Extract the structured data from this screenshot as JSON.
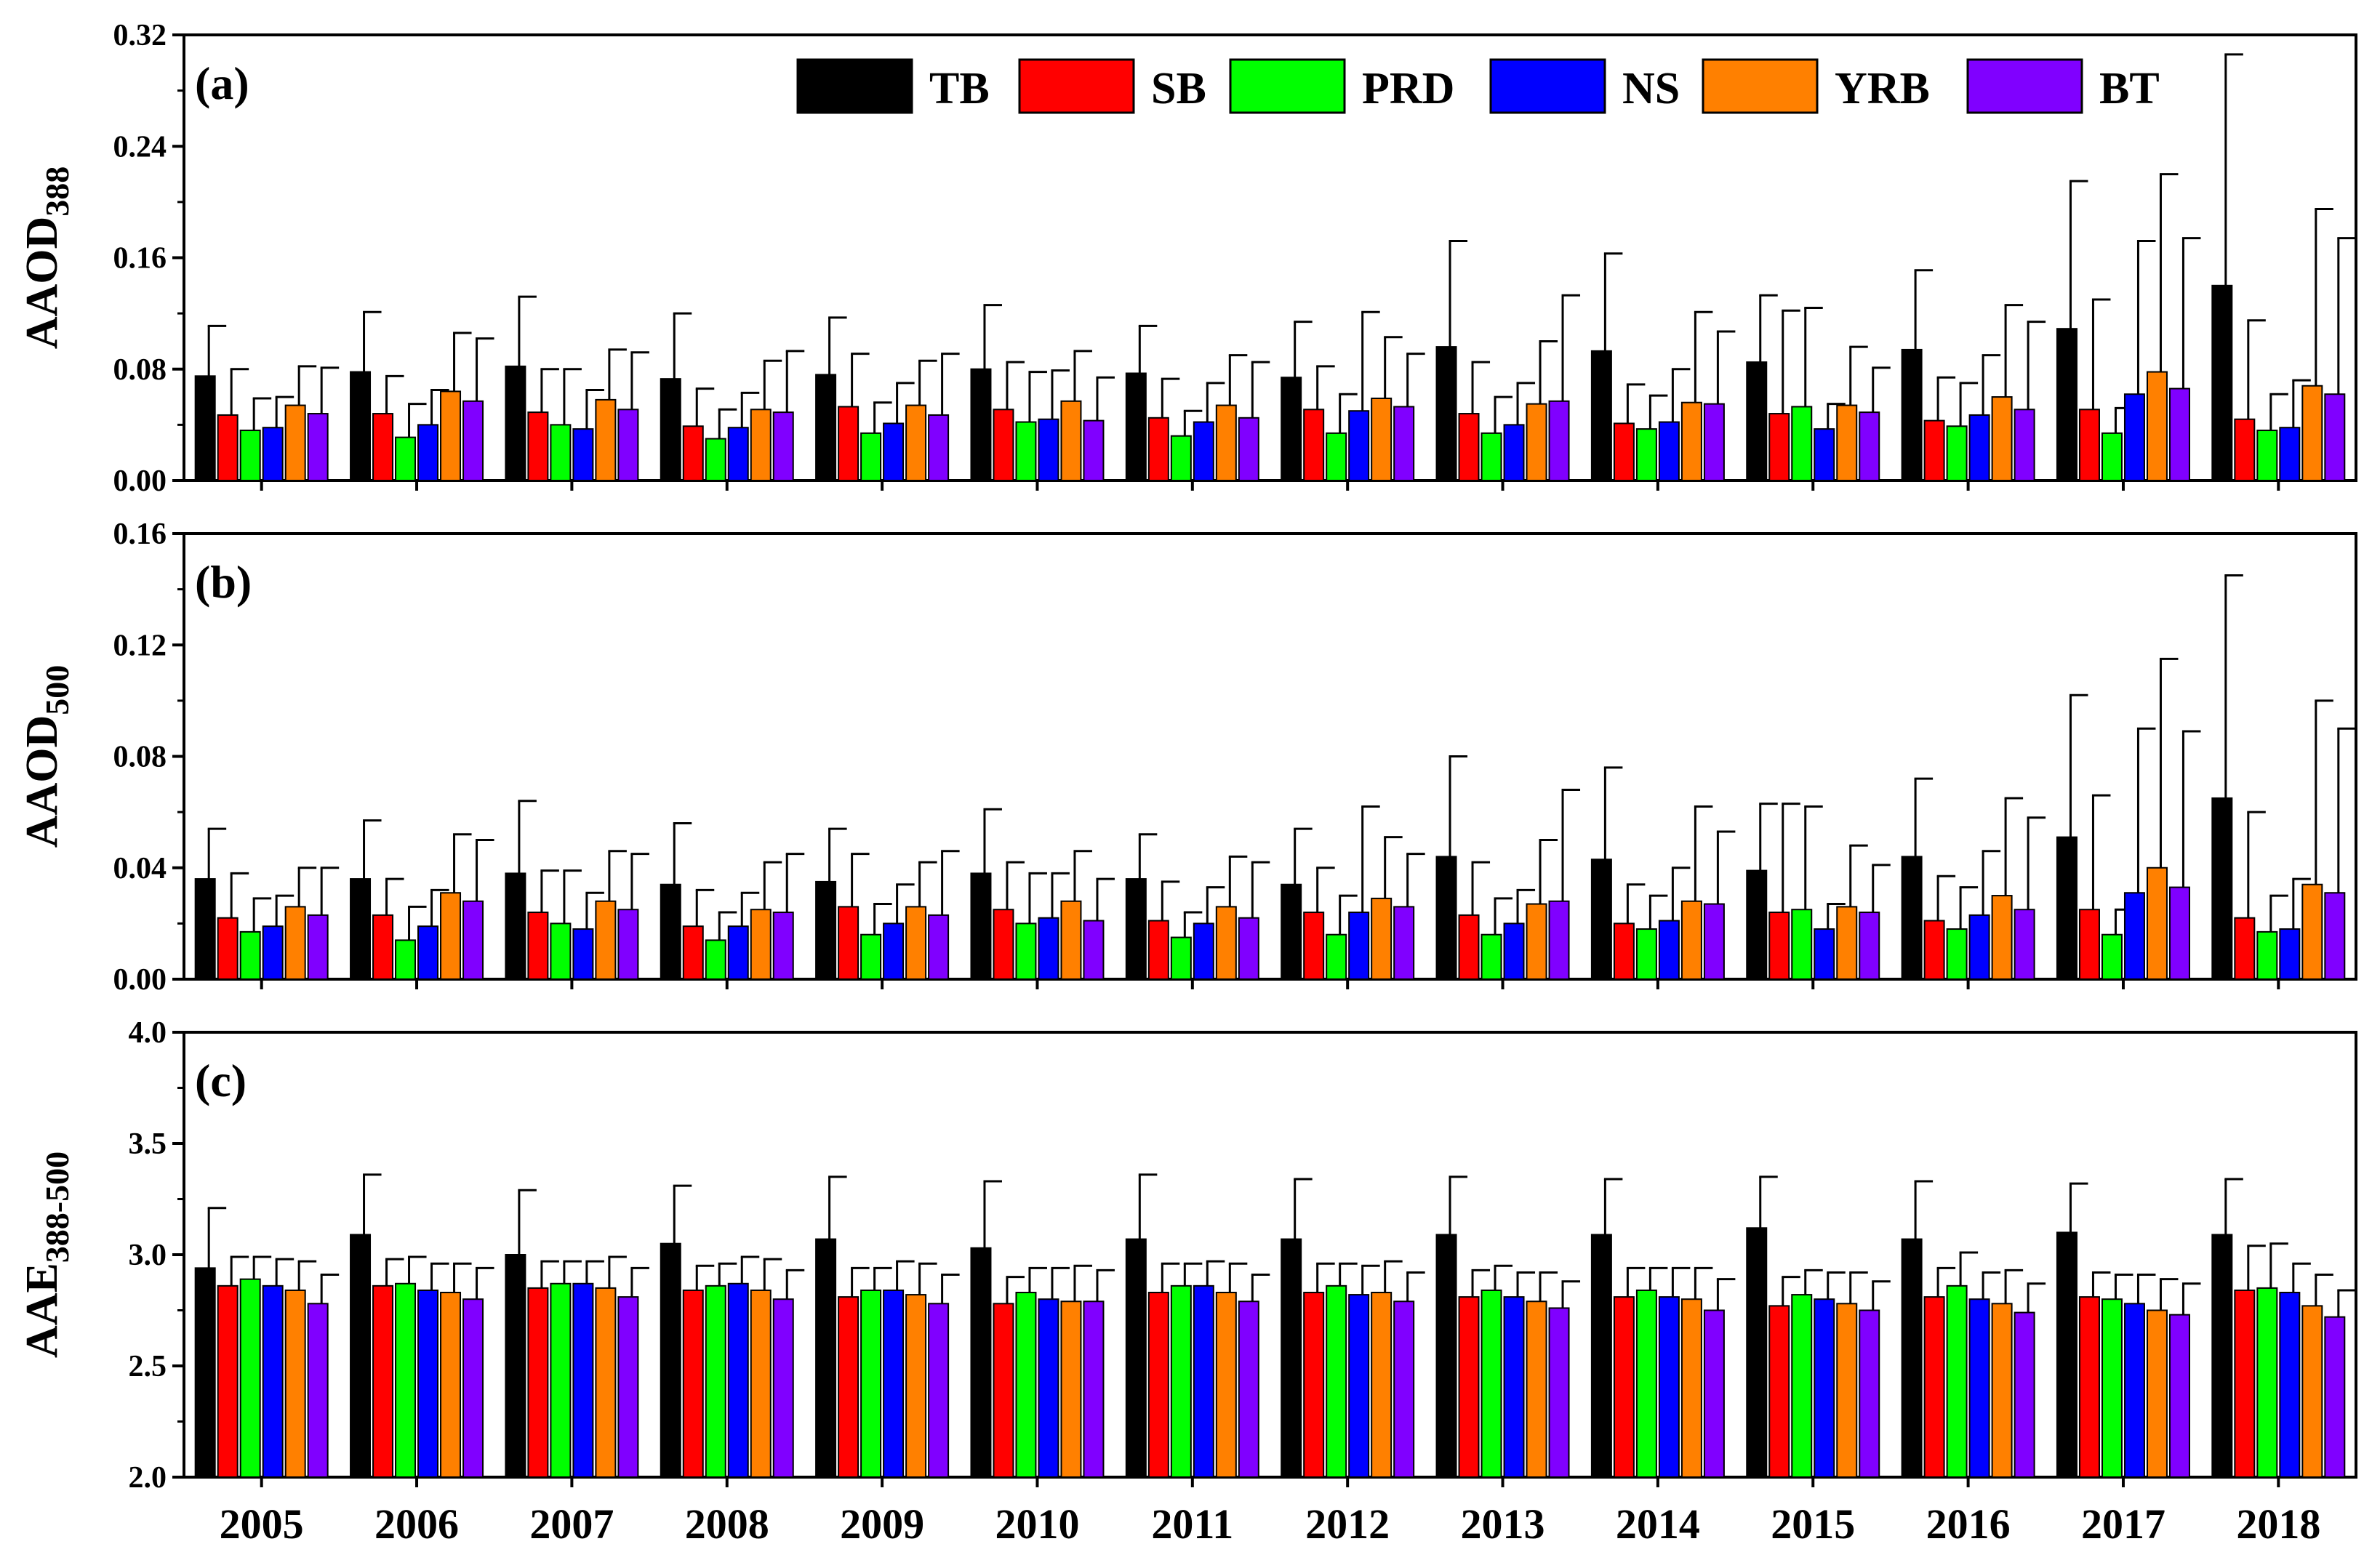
{
  "colors": {
    "TB": "#000000",
    "SB": "#ff0000",
    "PRD": "#00ff00",
    "NS": "#0000ff",
    "YRB": "#ff8000",
    "BT": "#8000ff"
  },
  "chart_data": [
    {
      "type": "bar",
      "panel_label": "(a)",
      "ylabel_main": "AAOD",
      "ylabel_sub": "388",
      "ylim": [
        0,
        0.32
      ],
      "yticks": [
        "0.00",
        "0.08",
        "0.16",
        "0.24",
        "0.32"
      ],
      "legend_position": "top-right",
      "categories": [
        "2005",
        "2006",
        "2007",
        "2008",
        "2009",
        "2010",
        "2011",
        "2012",
        "2013",
        "2014",
        "2015",
        "2016",
        "2017",
        "2018"
      ],
      "series": [
        {
          "name": "TB",
          "values": [
            0.075,
            0.078,
            0.082,
            0.073,
            0.076,
            0.08,
            0.077,
            0.074,
            0.096,
            0.093,
            0.085,
            0.094,
            0.109,
            0.14
          ],
          "errors": [
            0.036,
            0.043,
            0.05,
            0.047,
            0.041,
            0.046,
            0.034,
            0.04,
            0.076,
            0.07,
            0.048,
            0.057,
            0.106,
            0.166
          ]
        },
        {
          "name": "SB",
          "values": [
            0.047,
            0.048,
            0.049,
            0.039,
            0.053,
            0.051,
            0.045,
            0.051,
            0.048,
            0.041,
            0.048,
            0.043,
            0.051,
            0.044
          ],
          "errors": [
            0.033,
            0.027,
            0.031,
            0.027,
            0.038,
            0.034,
            0.028,
            0.031,
            0.037,
            0.028,
            0.074,
            0.031,
            0.079,
            0.071
          ]
        },
        {
          "name": "PRD",
          "values": [
            0.036,
            0.031,
            0.04,
            0.03,
            0.034,
            0.042,
            0.032,
            0.034,
            0.034,
            0.037,
            0.053,
            0.039,
            0.034,
            0.036
          ],
          "errors": [
            0.023,
            0.024,
            0.04,
            0.021,
            0.022,
            0.036,
            0.018,
            0.028,
            0.026,
            0.024,
            0.071,
            0.031,
            0.018,
            0.026
          ]
        },
        {
          "name": "NS",
          "values": [
            0.038,
            0.04,
            0.037,
            0.038,
            0.041,
            0.044,
            0.042,
            0.05,
            0.04,
            0.042,
            0.037,
            0.047,
            0.062,
            0.038
          ],
          "errors": [
            0.022,
            0.025,
            0.028,
            0.025,
            0.029,
            0.035,
            0.028,
            0.071,
            0.03,
            0.038,
            0.018,
            0.043,
            0.11,
            0.034
          ]
        },
        {
          "name": "YRB",
          "values": [
            0.054,
            0.064,
            0.058,
            0.051,
            0.054,
            0.057,
            0.054,
            0.059,
            0.055,
            0.056,
            0.054,
            0.06,
            0.078,
            0.068
          ],
          "errors": [
            0.028,
            0.042,
            0.036,
            0.035,
            0.032,
            0.036,
            0.036,
            0.044,
            0.045,
            0.065,
            0.042,
            0.066,
            0.142,
            0.127
          ]
        },
        {
          "name": "BT",
          "values": [
            0.048,
            0.057,
            0.051,
            0.049,
            0.047,
            0.043,
            0.045,
            0.053,
            0.057,
            0.055,
            0.049,
            0.051,
            0.066,
            0.062
          ],
          "errors": [
            0.033,
            0.045,
            0.041,
            0.044,
            0.044,
            0.031,
            0.04,
            0.038,
            0.076,
            0.052,
            0.032,
            0.063,
            0.108,
            0.112
          ]
        }
      ]
    },
    {
      "type": "bar",
      "panel_label": "(b)",
      "ylabel_main": "AAOD",
      "ylabel_sub": "500",
      "ylim": [
        0,
        0.16
      ],
      "yticks": [
        "0.00",
        "0.04",
        "0.08",
        "0.12",
        "0.16"
      ],
      "categories": [
        "2005",
        "2006",
        "2007",
        "2008",
        "2009",
        "2010",
        "2011",
        "2012",
        "2013",
        "2014",
        "2015",
        "2016",
        "2017",
        "2018"
      ],
      "series": [
        {
          "name": "TB",
          "values": [
            0.036,
            0.036,
            0.038,
            0.034,
            0.035,
            0.038,
            0.036,
            0.034,
            0.044,
            0.043,
            0.039,
            0.044,
            0.051,
            0.065
          ],
          "errors": [
            0.018,
            0.021,
            0.026,
            0.022,
            0.019,
            0.023,
            0.016,
            0.02,
            0.036,
            0.033,
            0.024,
            0.028,
            0.051,
            0.08
          ]
        },
        {
          "name": "SB",
          "values": [
            0.022,
            0.023,
            0.024,
            0.019,
            0.026,
            0.025,
            0.021,
            0.024,
            0.023,
            0.02,
            0.024,
            0.021,
            0.025,
            0.022
          ],
          "errors": [
            0.016,
            0.013,
            0.015,
            0.013,
            0.019,
            0.017,
            0.014,
            0.016,
            0.019,
            0.014,
            0.039,
            0.016,
            0.041,
            0.038
          ]
        },
        {
          "name": "PRD",
          "values": [
            0.017,
            0.014,
            0.02,
            0.014,
            0.016,
            0.02,
            0.015,
            0.016,
            0.016,
            0.018,
            0.025,
            0.018,
            0.016,
            0.017
          ],
          "errors": [
            0.012,
            0.012,
            0.019,
            0.01,
            0.011,
            0.018,
            0.009,
            0.014,
            0.013,
            0.012,
            0.037,
            0.015,
            0.009,
            0.013
          ]
        },
        {
          "name": "NS",
          "values": [
            0.019,
            0.019,
            0.018,
            0.019,
            0.02,
            0.022,
            0.02,
            0.024,
            0.02,
            0.021,
            0.018,
            0.023,
            0.031,
            0.018
          ],
          "errors": [
            0.011,
            0.013,
            0.013,
            0.012,
            0.014,
            0.016,
            0.013,
            0.038,
            0.012,
            0.019,
            0.009,
            0.023,
            0.059,
            0.018
          ]
        },
        {
          "name": "YRB",
          "values": [
            0.026,
            0.031,
            0.028,
            0.025,
            0.026,
            0.028,
            0.026,
            0.029,
            0.027,
            0.028,
            0.026,
            0.03,
            0.04,
            0.034
          ],
          "errors": [
            0.014,
            0.021,
            0.018,
            0.017,
            0.016,
            0.018,
            0.018,
            0.022,
            0.023,
            0.034,
            0.022,
            0.035,
            0.075,
            0.066
          ]
        },
        {
          "name": "BT",
          "values": [
            0.023,
            0.028,
            0.025,
            0.024,
            0.023,
            0.021,
            0.022,
            0.026,
            0.028,
            0.027,
            0.024,
            0.025,
            0.033,
            0.031
          ],
          "errors": [
            0.017,
            0.022,
            0.02,
            0.021,
            0.023,
            0.015,
            0.02,
            0.019,
            0.04,
            0.026,
            0.017,
            0.033,
            0.056,
            0.059
          ]
        }
      ]
    },
    {
      "type": "bar",
      "panel_label": "(c)",
      "ylabel_main": "AAE",
      "ylabel_sub": "388-500",
      "ylim": [
        2.0,
        4.0
      ],
      "yticks": [
        "2.0",
        "2.5",
        "3.0",
        "3.5",
        "4.0"
      ],
      "categories": [
        "2005",
        "2006",
        "2007",
        "2008",
        "2009",
        "2010",
        "2011",
        "2012",
        "2013",
        "2014",
        "2015",
        "2016",
        "2017",
        "2018"
      ],
      "series": [
        {
          "name": "TB",
          "values": [
            2.94,
            3.09,
            3.0,
            3.05,
            3.07,
            3.03,
            3.07,
            3.07,
            3.09,
            3.09,
            3.12,
            3.07,
            3.1,
            3.09
          ],
          "errors": [
            0.27,
            0.27,
            0.29,
            0.26,
            0.28,
            0.3,
            0.29,
            0.27,
            0.26,
            0.25,
            0.23,
            0.26,
            0.22,
            0.25
          ]
        },
        {
          "name": "SB",
          "values": [
            2.86,
            2.86,
            2.85,
            2.84,
            2.81,
            2.78,
            2.83,
            2.83,
            2.81,
            2.81,
            2.77,
            2.81,
            2.81,
            2.84
          ],
          "errors": [
            0.13,
            0.12,
            0.12,
            0.11,
            0.13,
            0.12,
            0.13,
            0.13,
            0.12,
            0.13,
            0.13,
            0.13,
            0.11,
            0.2
          ]
        },
        {
          "name": "PRD",
          "values": [
            2.89,
            2.87,
            2.87,
            2.86,
            2.84,
            2.83,
            2.86,
            2.86,
            2.84,
            2.84,
            2.82,
            2.86,
            2.8,
            2.85
          ],
          "errors": [
            0.1,
            0.12,
            0.1,
            0.1,
            0.1,
            0.11,
            0.1,
            0.1,
            0.11,
            0.1,
            0.11,
            0.15,
            0.11,
            0.2
          ]
        },
        {
          "name": "NS",
          "values": [
            2.86,
            2.84,
            2.87,
            2.87,
            2.84,
            2.8,
            2.86,
            2.82,
            2.81,
            2.81,
            2.8,
            2.8,
            2.78,
            2.83
          ],
          "errors": [
            0.12,
            0.12,
            0.1,
            0.12,
            0.13,
            0.14,
            0.11,
            0.13,
            0.11,
            0.13,
            0.12,
            0.12,
            0.13,
            0.13
          ]
        },
        {
          "name": "YRB",
          "values": [
            2.84,
            2.83,
            2.85,
            2.84,
            2.82,
            2.79,
            2.83,
            2.83,
            2.79,
            2.8,
            2.78,
            2.78,
            2.75,
            2.77
          ],
          "errors": [
            0.13,
            0.13,
            0.14,
            0.14,
            0.14,
            0.16,
            0.13,
            0.14,
            0.13,
            0.14,
            0.14,
            0.15,
            0.14,
            0.14
          ]
        },
        {
          "name": "BT",
          "values": [
            2.78,
            2.8,
            2.81,
            2.8,
            2.78,
            2.79,
            2.79,
            2.79,
            2.76,
            2.75,
            2.75,
            2.74,
            2.73,
            2.72
          ],
          "errors": [
            0.13,
            0.14,
            0.13,
            0.13,
            0.13,
            0.14,
            0.12,
            0.13,
            0.12,
            0.14,
            0.13,
            0.13,
            0.14,
            0.12
          ]
        }
      ]
    }
  ]
}
